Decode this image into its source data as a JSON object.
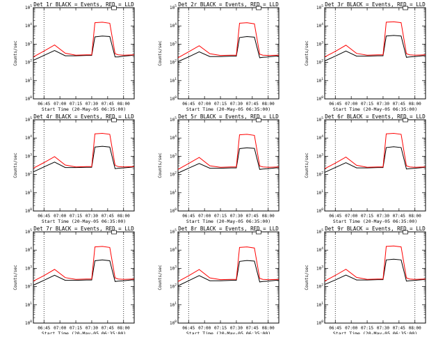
{
  "chart_data": [
    {
      "type": "line",
      "title": "Det 1r BLACK = Events, RED = LLD",
      "xlabel": "Start Time (20-May-05 06:35:00)",
      "ylabel": "Counts/sec",
      "x_ticks": [
        "06:45",
        "07:00",
        "07:15",
        "07:30",
        "07:45",
        "08:00"
      ],
      "y_ticks": [
        "10^0",
        "10^1",
        "10^2",
        "10^3",
        "10^4",
        "10^5"
      ],
      "yscale": "log",
      "ylim": [
        1,
        100000
      ],
      "flags": [
        "06:45",
        "08:00"
      ],
      "series": [
        {
          "name": "Events",
          "color": "#000000",
          "t": [
            "06:35",
            "06:45",
            "06:55",
            "07:05",
            "07:15",
            "07:25",
            "07:30",
            "07:33",
            "07:40",
            "07:47",
            "07:52",
            "07:55",
            "08:00",
            "08:10"
          ],
          "values": [
            130,
            240,
            450,
            230,
            230,
            240,
            240,
            2500,
            2800,
            2600,
            200,
            200,
            220,
            250
          ]
        },
        {
          "name": "LLD",
          "color": "#ff0000",
          "t": [
            "06:35",
            "06:45",
            "06:55",
            "07:05",
            "07:15",
            "07:25",
            "07:30",
            "07:33",
            "07:40",
            "07:47",
            "07:52",
            "07:55",
            "08:00",
            "08:10"
          ],
          "values": [
            200,
            420,
            900,
            320,
            250,
            260,
            260,
            15000,
            16000,
            14000,
            300,
            260,
            250,
            260
          ]
        }
      ]
    },
    {
      "type": "line",
      "title": "Det 2r BLACK = Events, RED = LLD",
      "xlabel": "Start Time (20-May-05 06:35:00)",
      "ylabel": "Counts/sec",
      "x_ticks": [
        "06:45",
        "07:00",
        "07:15",
        "07:30",
        "07:45",
        "08:00"
      ],
      "y_ticks": [
        "10^0",
        "10^1",
        "10^2",
        "10^3",
        "10^4",
        "10^5"
      ],
      "yscale": "log",
      "ylim": [
        1,
        100000
      ],
      "flags": [
        "06:45",
        "08:00"
      ],
      "series": [
        {
          "name": "Events",
          "color": "#000000",
          "t": [
            "06:35",
            "06:45",
            "06:55",
            "07:05",
            "07:15",
            "07:25",
            "07:30",
            "07:33",
            "07:40",
            "07:47",
            "07:52",
            "07:55",
            "08:00",
            "08:10"
          ],
          "values": [
            110,
            200,
            380,
            210,
            210,
            220,
            220,
            2300,
            2600,
            2400,
            180,
            190,
            200,
            230
          ]
        },
        {
          "name": "LLD",
          "color": "#ff0000",
          "t": [
            "06:35",
            "06:45",
            "06:55",
            "07:05",
            "07:15",
            "07:25",
            "07:30",
            "07:33",
            "07:40",
            "07:47",
            "07:52",
            "07:55",
            "08:00",
            "08:10"
          ],
          "values": [
            180,
            380,
            820,
            300,
            240,
            250,
            250,
            14000,
            15000,
            13000,
            280,
            250,
            240,
            250
          ]
        }
      ]
    },
    {
      "type": "line",
      "title": "Det 3r BLACK = Events, RED = LLD",
      "xlabel": "Start Time (20-May-05 06:35:00)",
      "ylabel": "Counts/sec",
      "x_ticks": [
        "06:45",
        "07:00",
        "07:15",
        "07:30",
        "07:45",
        "08:00"
      ],
      "y_ticks": [
        "10^0",
        "10^1",
        "10^2",
        "10^3",
        "10^4",
        "10^5"
      ],
      "yscale": "log",
      "ylim": [
        1,
        100000
      ],
      "flags": [
        "06:45",
        "08:00"
      ],
      "series": [
        {
          "name": "Events",
          "color": "#000000",
          "t": [
            "06:35",
            "06:45",
            "06:55",
            "07:05",
            "07:15",
            "07:25",
            "07:30",
            "07:33",
            "07:40",
            "07:47",
            "07:52",
            "07:55",
            "08:00",
            "08:10"
          ],
          "values": [
            120,
            220,
            420,
            220,
            220,
            230,
            230,
            2800,
            3000,
            2800,
            190,
            200,
            210,
            240
          ]
        },
        {
          "name": "LLD",
          "color": "#ff0000",
          "t": [
            "06:35",
            "06:45",
            "06:55",
            "07:05",
            "07:15",
            "07:25",
            "07:30",
            "07:33",
            "07:40",
            "07:47",
            "07:52",
            "07:55",
            "08:00",
            "08:10"
          ],
          "values": [
            200,
            400,
            880,
            310,
            250,
            260,
            260,
            16000,
            17000,
            15000,
            300,
            260,
            250,
            260
          ]
        }
      ]
    },
    {
      "type": "line",
      "title": "Det 4r BLACK = Events, RED = LLD",
      "xlabel": "Start Time (20-May-05 06:35:00)",
      "ylabel": "Counts/sec",
      "x_ticks": [
        "06:45",
        "07:00",
        "07:15",
        "07:30",
        "07:45",
        "08:00"
      ],
      "y_ticks": [
        "10^0",
        "10^1",
        "10^2",
        "10^3",
        "10^4",
        "10^5"
      ],
      "yscale": "log",
      "ylim": [
        1,
        100000
      ],
      "flags": [
        "06:45",
        "08:00"
      ],
      "series": [
        {
          "name": "Events",
          "color": "#000000",
          "t": [
            "06:35",
            "06:45",
            "06:55",
            "07:05",
            "07:15",
            "07:25",
            "07:30",
            "07:33",
            "07:40",
            "07:47",
            "07:52",
            "07:55",
            "08:00",
            "08:10"
          ],
          "values": [
            140,
            260,
            480,
            240,
            240,
            250,
            250,
            3200,
            3500,
            3200,
            210,
            220,
            230,
            260
          ]
        },
        {
          "name": "LLD",
          "color": "#ff0000",
          "t": [
            "06:35",
            "06:45",
            "06:55",
            "07:05",
            "07:15",
            "07:25",
            "07:30",
            "07:33",
            "07:40",
            "07:47",
            "07:52",
            "07:55",
            "08:00",
            "08:10"
          ],
          "values": [
            220,
            450,
            950,
            330,
            260,
            270,
            270,
            17000,
            18000,
            16000,
            320,
            270,
            260,
            270
          ]
        }
      ]
    },
    {
      "type": "line",
      "title": "Det 5r BLACK = Events, RED = LLD",
      "xlabel": "Start Time (20-May-05 06:35:00)",
      "ylabel": "Counts/sec",
      "x_ticks": [
        "06:45",
        "07:00",
        "07:15",
        "07:30",
        "07:45",
        "08:00"
      ],
      "y_ticks": [
        "10^0",
        "10^1",
        "10^2",
        "10^3",
        "10^4",
        "10^5"
      ],
      "yscale": "log",
      "ylim": [
        1,
        100000
      ],
      "flags": [
        "06:45",
        "08:00"
      ],
      "series": [
        {
          "name": "Events",
          "color": "#000000",
          "t": [
            "06:35",
            "06:45",
            "06:55",
            "07:05",
            "07:15",
            "07:25",
            "07:30",
            "07:33",
            "07:40",
            "07:47",
            "07:52",
            "07:55",
            "08:00",
            "08:10"
          ],
          "values": [
            120,
            220,
            400,
            220,
            220,
            230,
            230,
            2600,
            2900,
            2700,
            190,
            200,
            210,
            240
          ]
        },
        {
          "name": "LLD",
          "color": "#ff0000",
          "t": [
            "06:35",
            "06:45",
            "06:55",
            "07:05",
            "07:15",
            "07:25",
            "07:30",
            "07:33",
            "07:40",
            "07:47",
            "07:52",
            "07:55",
            "08:00",
            "08:10"
          ],
          "values": [
            190,
            400,
            860,
            300,
            250,
            260,
            260,
            15000,
            16000,
            14000,
            290,
            260,
            250,
            260
          ]
        }
      ]
    },
    {
      "type": "line",
      "title": "Det 6r BLACK = Events, RED = LLD",
      "xlabel": "Start Time (20-May-05 06:35:00)",
      "ylabel": "Counts/sec",
      "x_ticks": [
        "06:45",
        "07:00",
        "07:15",
        "07:30",
        "07:45",
        "08:00"
      ],
      "y_ticks": [
        "10^0",
        "10^1",
        "10^2",
        "10^3",
        "10^4",
        "10^5"
      ],
      "yscale": "log",
      "ylim": [
        1,
        100000
      ],
      "flags": [
        "06:45",
        "08:00"
      ],
      "series": [
        {
          "name": "Events",
          "color": "#000000",
          "t": [
            "06:35",
            "06:45",
            "06:55",
            "07:05",
            "07:15",
            "07:25",
            "07:30",
            "07:33",
            "07:40",
            "07:47",
            "07:52",
            "07:55",
            "08:00",
            "08:10"
          ],
          "values": [
            130,
            240,
            440,
            230,
            230,
            240,
            240,
            3000,
            3300,
            3000,
            200,
            210,
            220,
            250
          ]
        },
        {
          "name": "LLD",
          "color": "#ff0000",
          "t": [
            "06:35",
            "06:45",
            "06:55",
            "07:05",
            "07:15",
            "07:25",
            "07:30",
            "07:33",
            "07:40",
            "07:47",
            "07:52",
            "07:55",
            "08:00",
            "08:10"
          ],
          "values": [
            210,
            420,
            900,
            320,
            250,
            260,
            260,
            17000,
            18000,
            16000,
            300,
            260,
            250,
            260
          ]
        }
      ]
    },
    {
      "type": "line",
      "title": "Det 7r BLACK = Events, RED = LLD",
      "xlabel": "Start Time (20-May-05 06:35:00)",
      "ylabel": "Counts/sec",
      "x_ticks": [
        "06:45",
        "07:00",
        "07:15",
        "07:30",
        "07:45",
        "08:00"
      ],
      "y_ticks": [
        "10^0",
        "10^1",
        "10^2",
        "10^3",
        "10^4",
        "10^5"
      ],
      "yscale": "log",
      "ylim": [
        1,
        100000
      ],
      "flags": [
        "06:45",
        "08:00"
      ],
      "series": [
        {
          "name": "Events",
          "color": "#000000",
          "t": [
            "06:35",
            "06:45",
            "06:55",
            "07:05",
            "07:15",
            "07:25",
            "07:30",
            "07:33",
            "07:40",
            "07:47",
            "07:52",
            "07:55",
            "08:00",
            "08:10"
          ],
          "values": [
            120,
            220,
            420,
            220,
            220,
            230,
            230,
            2600,
            2900,
            2600,
            190,
            200,
            210,
            240
          ]
        },
        {
          "name": "LLD",
          "color": "#ff0000",
          "t": [
            "06:35",
            "06:45",
            "06:55",
            "07:05",
            "07:15",
            "07:25",
            "07:30",
            "07:33",
            "07:40",
            "07:47",
            "07:52",
            "07:55",
            "08:00",
            "08:10"
          ],
          "values": [
            200,
            400,
            880,
            310,
            250,
            260,
            260,
            15000,
            16000,
            14000,
            300,
            260,
            250,
            260
          ]
        }
      ]
    },
    {
      "type": "line",
      "title": "Det 8r BLACK = Events, RED = LLD",
      "xlabel": "Start Time (20-May-05 06:35:00)",
      "ylabel": "Counts/sec",
      "x_ticks": [
        "06:45",
        "07:00",
        "07:15",
        "07:30",
        "07:45",
        "08:00"
      ],
      "y_ticks": [
        "10^0",
        "10^1",
        "10^2",
        "10^3",
        "10^4",
        "10^5"
      ],
      "yscale": "log",
      "ylim": [
        1,
        100000
      ],
      "flags": [
        "06:45",
        "08:00"
      ],
      "series": [
        {
          "name": "Events",
          "color": "#000000",
          "t": [
            "06:35",
            "06:45",
            "06:55",
            "07:05",
            "07:15",
            "07:25",
            "07:30",
            "07:33",
            "07:40",
            "07:47",
            "07:52",
            "07:55",
            "08:00",
            "08:10"
          ],
          "values": [
            110,
            210,
            400,
            210,
            210,
            220,
            220,
            2400,
            2700,
            2500,
            180,
            190,
            200,
            230
          ]
        },
        {
          "name": "LLD",
          "color": "#ff0000",
          "t": [
            "06:35",
            "06:45",
            "06:55",
            "07:05",
            "07:15",
            "07:25",
            "07:30",
            "07:33",
            "07:40",
            "07:47",
            "07:52",
            "07:55",
            "08:00",
            "08:10"
          ],
          "values": [
            190,
            390,
            860,
            300,
            240,
            250,
            250,
            14000,
            15000,
            13000,
            280,
            250,
            240,
            250
          ]
        }
      ]
    },
    {
      "type": "line",
      "title": "Det 9r BLACK = Events, RED = LLD",
      "xlabel": "Start Time (20-May-05 06:35:00)",
      "ylabel": "Counts/sec",
      "x_ticks": [
        "06:45",
        "07:00",
        "07:15",
        "07:30",
        "07:45",
        "08:00"
      ],
      "y_ticks": [
        "10^0",
        "10^1",
        "10^2",
        "10^3",
        "10^4",
        "10^5"
      ],
      "yscale": "log",
      "ylim": [
        1,
        100000
      ],
      "flags": [
        "06:45",
        "08:00"
      ],
      "series": [
        {
          "name": "Events",
          "color": "#000000",
          "t": [
            "06:35",
            "06:45",
            "06:55",
            "07:05",
            "07:15",
            "07:25",
            "07:30",
            "07:33",
            "07:40",
            "07:47",
            "07:52",
            "07:55",
            "08:00",
            "08:10"
          ],
          "values": [
            130,
            230,
            430,
            230,
            230,
            240,
            240,
            2900,
            3200,
            2900,
            200,
            210,
            220,
            250
          ]
        },
        {
          "name": "LLD",
          "color": "#ff0000",
          "t": [
            "06:35",
            "06:45",
            "06:55",
            "07:05",
            "07:15",
            "07:25",
            "07:30",
            "07:33",
            "07:40",
            "07:47",
            "07:52",
            "07:55",
            "08:00",
            "08:10"
          ],
          "values": [
            200,
            410,
            890,
            320,
            250,
            260,
            260,
            16000,
            17000,
            15000,
            300,
            260,
            250,
            260
          ]
        }
      ]
    }
  ]
}
